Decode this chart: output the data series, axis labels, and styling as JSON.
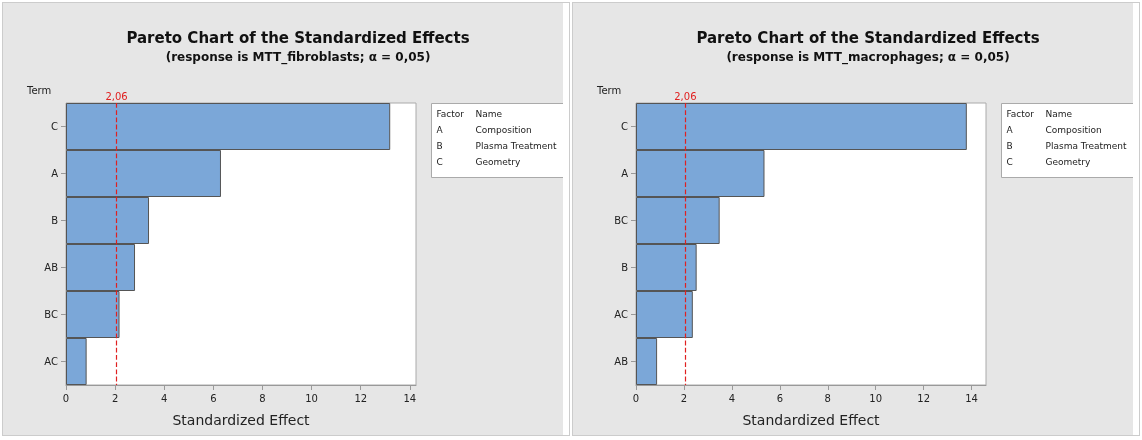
{
  "chart_data": [
    {
      "type": "bar",
      "orientation": "horizontal",
      "title": "Pareto Chart of the Standardized Effects",
      "subtitle": "(response is MTT_fibroblasts; α = 0,05)",
      "xlabel": "Standardized Effect",
      "ylabel": "Term",
      "categories": [
        "C",
        "A",
        "B",
        "AB",
        "BC",
        "AC"
      ],
      "values": [
        13.2,
        6.31,
        3.38,
        2.81,
        2.18,
        0.84
      ],
      "color": "#7ba7d8",
      "xlim": [
        0,
        14.25
      ],
      "xticks": [
        0,
        2,
        4,
        6,
        8,
        10,
        12,
        14
      ],
      "ref_lines": [
        {
          "axis": "x",
          "value": 2.06,
          "label": "2,06",
          "color": "#e02020",
          "line_style": "dashed"
        }
      ],
      "annotations": [
        "Factor",
        "Name",
        "A",
        "Composition",
        "B",
        "Plasma Treatment",
        "C",
        "Geometry"
      ],
      "grid": false
    },
    {
      "type": "bar",
      "orientation": "horizontal",
      "title": "Pareto Chart of the Standardized Effects",
      "subtitle": "(response is MTT_macrophages; α = 0,05)",
      "xlabel": "Standardized Effect",
      "ylabel": "Term",
      "categories": [
        "C",
        "A",
        "BC",
        "B",
        "AC",
        "AB"
      ],
      "values": [
        13.8,
        5.36,
        3.49,
        2.53,
        2.37,
        0.88
      ],
      "color": "#7ba7d8",
      "xlim": [
        0,
        14.6
      ],
      "xticks": [
        0,
        2,
        4,
        6,
        8,
        10,
        12,
        14
      ],
      "ref_lines": [
        {
          "axis": "x",
          "value": 2.06,
          "label": "2,06",
          "color": "#e02020",
          "line_style": "dashed"
        }
      ],
      "annotations": [
        "Factor",
        "Name",
        "A",
        "Composition",
        "B",
        "Plasma Treatment",
        "C",
        "Geometry"
      ],
      "grid": false
    }
  ]
}
